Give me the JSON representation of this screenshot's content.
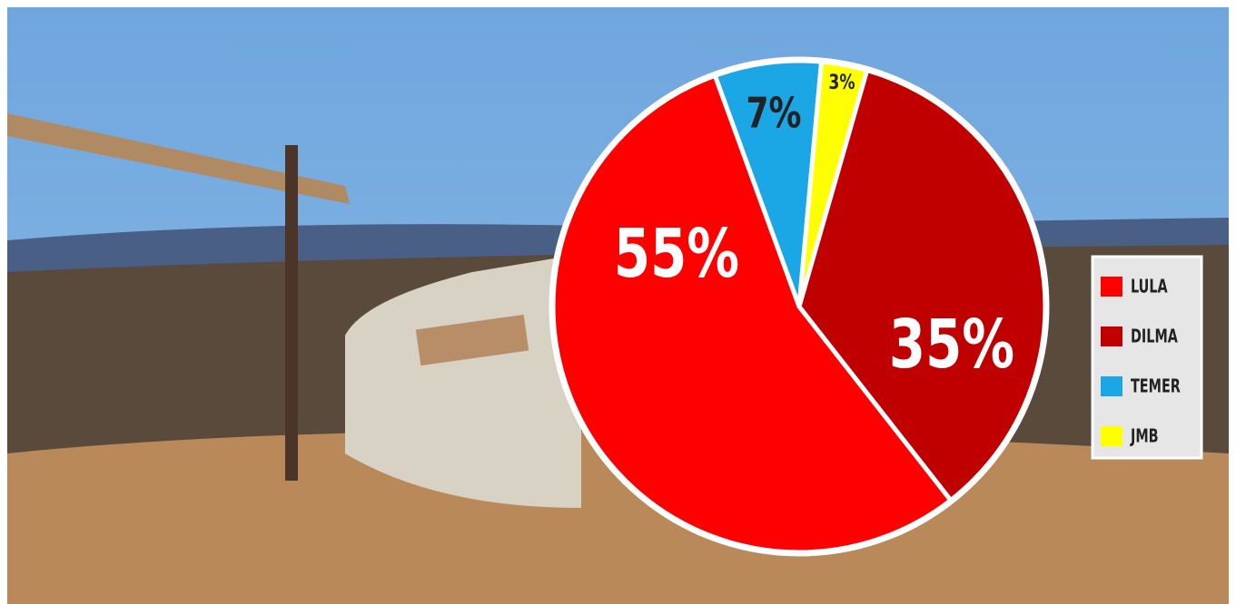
{
  "chart_data": {
    "type": "pie",
    "categories": [
      "LULA",
      "DILMA",
      "TEMER",
      "JMB"
    ],
    "values": [
      55,
      35,
      7,
      3
    ],
    "value_labels": [
      "55%",
      "35%",
      "7%",
      "3%"
    ],
    "colors": [
      "#ff0000",
      "#c00000",
      "#1ba6e6",
      "#ffff00"
    ],
    "legend": "right"
  }
}
